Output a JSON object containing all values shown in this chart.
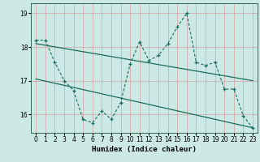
{
  "title": "",
  "xlabel": "Humidex (Indice chaleur)",
  "ylabel": "",
  "bg_color": "#cce9e5",
  "grid_color": "#d4a0a0",
  "line_color": "#1a6b5a",
  "x_data": [
    0,
    1,
    2,
    3,
    4,
    5,
    6,
    7,
    8,
    9,
    10,
    11,
    12,
    13,
    14,
    15,
    16,
    17,
    18,
    19,
    20,
    21,
    22,
    23
  ],
  "y_jagged": [
    18.2,
    18.2,
    17.55,
    17.0,
    16.7,
    15.85,
    15.75,
    16.1,
    15.85,
    16.35,
    17.5,
    18.15,
    17.6,
    17.75,
    18.1,
    18.6,
    19.0,
    17.55,
    17.45,
    17.55,
    16.75,
    16.75,
    15.95,
    15.6
  ],
  "trend1_x": [
    0,
    23
  ],
  "trend1_y": [
    18.1,
    17.0
  ],
  "trend2_x": [
    0,
    23
  ],
  "trend2_y": [
    17.05,
    15.6
  ],
  "ylim": [
    15.45,
    19.3
  ],
  "xlim": [
    -0.5,
    23.5
  ],
  "yticks": [
    16,
    17,
    18,
    19
  ],
  "xticks": [
    0,
    1,
    2,
    3,
    4,
    5,
    6,
    7,
    8,
    9,
    10,
    11,
    12,
    13,
    14,
    15,
    16,
    17,
    18,
    19,
    20,
    21,
    22,
    23
  ],
  "tick_fontsize": 5.5,
  "xlabel_fontsize": 6.5
}
